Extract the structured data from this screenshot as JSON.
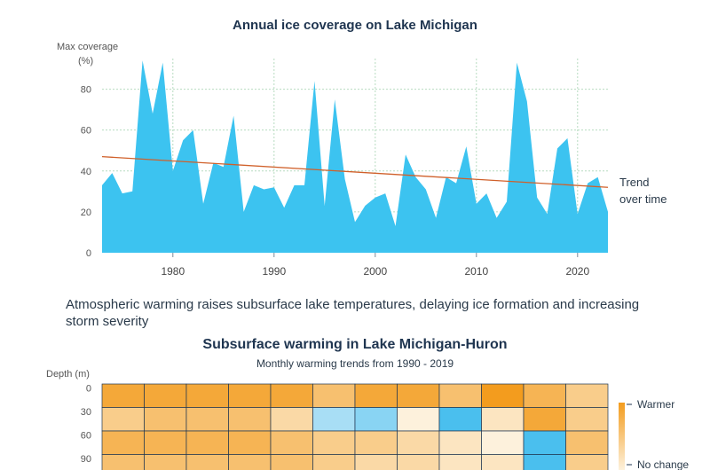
{
  "chart_data": [
    {
      "type": "area",
      "title": "Annual ice coverage on Lake Michigan",
      "ylabel_line1": "Max coverage",
      "ylabel_line2": "(%)",
      "xlabel": "",
      "x_ticks": [
        1980,
        1990,
        2000,
        2010,
        2020
      ],
      "y_ticks": [
        0,
        20,
        40,
        60,
        80
      ],
      "ylim": [
        0,
        95
      ],
      "xlim": [
        1973,
        2023
      ],
      "series": [
        {
          "name": "Max coverage",
          "color": "#3cc3f0",
          "x": [
            1973,
            1974,
            1975,
            1976,
            1977,
            1978,
            1979,
            1980,
            1981,
            1982,
            1983,
            1984,
            1985,
            1986,
            1987,
            1988,
            1989,
            1990,
            1991,
            1992,
            1993,
            1994,
            1995,
            1996,
            1997,
            1998,
            1999,
            2000,
            2001,
            2002,
            2003,
            2004,
            2005,
            2006,
            2007,
            2008,
            2009,
            2010,
            2011,
            2012,
            2013,
            2014,
            2015,
            2016,
            2017,
            2018,
            2019,
            2020,
            2021,
            2022,
            2023
          ],
          "values": [
            33,
            39,
            29,
            30,
            94,
            68,
            93,
            40,
            55,
            60,
            24,
            44,
            42,
            67,
            20,
            33,
            31,
            32,
            22,
            33,
            33,
            84,
            23,
            75,
            36,
            15,
            23,
            27,
            29,
            13,
            48,
            37,
            31,
            17,
            37,
            34,
            52,
            24,
            29,
            17,
            25,
            93,
            74,
            27,
            19,
            51,
            56,
            19,
            34,
            37,
            20
          ]
        }
      ],
      "trend": {
        "label_line1": "Trend",
        "label_line2": "over time",
        "start": [
          1973,
          47
        ],
        "end": [
          2023,
          32
        ],
        "color": "#d0602a"
      }
    },
    {
      "type": "heatmap",
      "title": "Subsurface warming in Lake Michigan-Huron",
      "subtitle": "Monthly warming trends from 1990 - 2019",
      "ylabel": "Depth (m)",
      "row_labels": [
        "0",
        "30",
        "60",
        "90"
      ],
      "columns": 12,
      "values": [
        [
          3,
          3,
          3,
          3,
          3,
          2,
          3,
          3,
          2,
          3.5,
          2.5,
          1.5
        ],
        [
          1.5,
          2,
          2,
          2,
          1,
          -1,
          -1.5,
          0,
          -2.5,
          0.5,
          3,
          1.5
        ],
        [
          2.5,
          2.5,
          2.5,
          2.5,
          2,
          1.5,
          1.5,
          1,
          0.5,
          0,
          -2.5,
          2
        ],
        [
          2,
          2,
          2,
          2,
          2,
          1.5,
          1,
          1,
          0.5,
          0.5,
          -2.5,
          1.5
        ]
      ],
      "legend": {
        "high_label": "Warmer",
        "mid_label": "No change"
      }
    }
  ],
  "caption": "Atmospheric warming raises subsurface lake temperatures, delaying ice formation and increasing storm severity"
}
